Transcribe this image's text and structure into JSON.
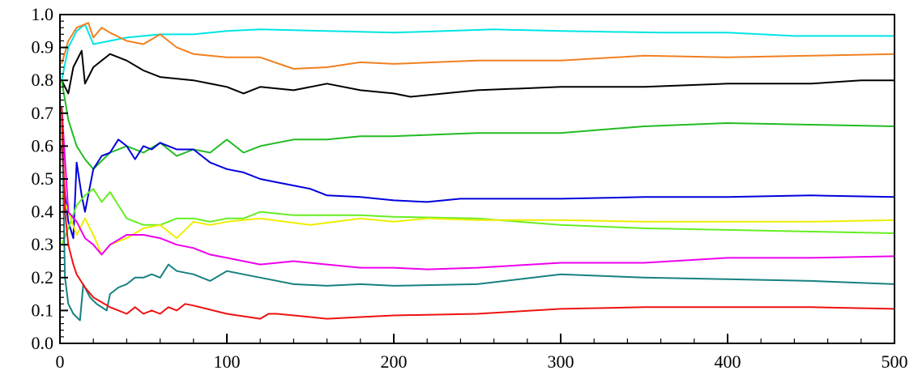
{
  "chart_data": {
    "type": "line",
    "title": "",
    "xlabel": "",
    "ylabel": "",
    "xlim": [
      0,
      500
    ],
    "ylim": [
      0.0,
      1.0
    ],
    "x_ticks": [
      "0",
      "100",
      "200",
      "300",
      "400",
      "500"
    ],
    "y_ticks": [
      "0.0",
      "0.1",
      "0.2",
      "0.3",
      "0.4",
      "0.5",
      "0.6",
      "0.7",
      "0.8",
      "0.9",
      "1.0"
    ],
    "grid": false,
    "legend": "none",
    "series": [
      {
        "color": "#00e5e5",
        "x": [
          1,
          5,
          10,
          15,
          20,
          40,
          60,
          80,
          100,
          120,
          160,
          200,
          260,
          300,
          360,
          400,
          440,
          500
        ],
        "y": [
          0.8,
          0.9,
          0.95,
          0.97,
          0.91,
          0.93,
          0.94,
          0.94,
          0.95,
          0.955,
          0.95,
          0.945,
          0.955,
          0.95,
          0.945,
          0.945,
          0.935,
          0.935
        ]
      },
      {
        "color": "#f08020",
        "x": [
          1,
          5,
          10,
          17,
          20,
          25,
          30,
          40,
          50,
          60,
          70,
          80,
          100,
          120,
          140,
          160,
          180,
          200,
          250,
          300,
          350,
          400,
          450,
          500
        ],
        "y": [
          0.85,
          0.92,
          0.96,
          0.975,
          0.93,
          0.96,
          0.945,
          0.92,
          0.91,
          0.94,
          0.9,
          0.88,
          0.87,
          0.87,
          0.835,
          0.84,
          0.855,
          0.85,
          0.86,
          0.86,
          0.875,
          0.87,
          0.875,
          0.88
        ]
      },
      {
        "color": "#000000",
        "x": [
          1,
          5,
          8,
          13,
          15,
          20,
          25,
          30,
          40,
          50,
          60,
          80,
          100,
          110,
          120,
          140,
          160,
          180,
          200,
          210,
          250,
          300,
          350,
          400,
          450,
          480,
          500
        ],
        "y": [
          0.8,
          0.76,
          0.84,
          0.89,
          0.79,
          0.84,
          0.86,
          0.88,
          0.86,
          0.83,
          0.81,
          0.8,
          0.78,
          0.76,
          0.78,
          0.77,
          0.79,
          0.77,
          0.76,
          0.75,
          0.77,
          0.78,
          0.78,
          0.79,
          0.79,
          0.8,
          0.8
        ]
      },
      {
        "color": "#22bb22",
        "x": [
          1,
          5,
          10,
          15,
          20,
          30,
          40,
          50,
          60,
          70,
          80,
          90,
          100,
          110,
          120,
          140,
          160,
          180,
          200,
          250,
          300,
          350,
          400,
          450,
          500
        ],
        "y": [
          0.8,
          0.68,
          0.6,
          0.56,
          0.53,
          0.58,
          0.6,
          0.58,
          0.61,
          0.57,
          0.59,
          0.58,
          0.62,
          0.58,
          0.6,
          0.62,
          0.62,
          0.63,
          0.63,
          0.64,
          0.64,
          0.66,
          0.67,
          0.665,
          0.66
        ]
      },
      {
        "color": "#0000dd",
        "x": [
          1,
          3,
          5,
          8,
          10,
          13,
          15,
          20,
          25,
          30,
          35,
          40,
          45,
          50,
          55,
          60,
          65,
          70,
          80,
          90,
          100,
          110,
          120,
          130,
          140,
          150,
          160,
          180,
          200,
          220,
          240,
          260,
          300,
          350,
          400,
          450,
          500
        ],
        "y": [
          0.6,
          0.45,
          0.37,
          0.32,
          0.55,
          0.45,
          0.4,
          0.53,
          0.57,
          0.58,
          0.62,
          0.6,
          0.56,
          0.6,
          0.59,
          0.61,
          0.6,
          0.59,
          0.59,
          0.55,
          0.53,
          0.52,
          0.5,
          0.49,
          0.48,
          0.47,
          0.45,
          0.445,
          0.435,
          0.43,
          0.44,
          0.44,
          0.44,
          0.445,
          0.445,
          0.45,
          0.445
        ]
      },
      {
        "color": "#66ee22",
        "x": [
          1,
          5,
          10,
          15,
          20,
          25,
          30,
          40,
          50,
          60,
          70,
          80,
          90,
          100,
          110,
          120,
          140,
          160,
          180,
          200,
          250,
          300,
          350,
          400,
          450,
          500
        ],
        "y": [
          0.3,
          0.35,
          0.42,
          0.45,
          0.47,
          0.43,
          0.46,
          0.38,
          0.36,
          0.36,
          0.38,
          0.38,
          0.37,
          0.38,
          0.38,
          0.4,
          0.39,
          0.39,
          0.39,
          0.385,
          0.38,
          0.36,
          0.35,
          0.345,
          0.34,
          0.335
        ]
      },
      {
        "color": "#eeee00",
        "x": [
          1,
          5,
          10,
          15,
          20,
          25,
          30,
          40,
          50,
          60,
          70,
          80,
          90,
          100,
          120,
          150,
          180,
          200,
          220,
          250,
          300,
          350,
          400,
          450,
          500
        ],
        "y": [
          0.45,
          0.4,
          0.33,
          0.38,
          0.33,
          0.27,
          0.3,
          0.32,
          0.35,
          0.36,
          0.32,
          0.37,
          0.36,
          0.37,
          0.38,
          0.36,
          0.38,
          0.37,
          0.38,
          0.375,
          0.375,
          0.37,
          0.37,
          0.37,
          0.375
        ]
      },
      {
        "color": "#ee00ee",
        "x": [
          1,
          5,
          10,
          15,
          20,
          25,
          30,
          40,
          50,
          60,
          70,
          80,
          90,
          100,
          110,
          120,
          140,
          160,
          180,
          200,
          220,
          250,
          300,
          350,
          400,
          450,
          500
        ],
        "y": [
          0.72,
          0.4,
          0.37,
          0.32,
          0.3,
          0.27,
          0.3,
          0.33,
          0.33,
          0.32,
          0.3,
          0.29,
          0.27,
          0.26,
          0.25,
          0.24,
          0.25,
          0.24,
          0.23,
          0.23,
          0.225,
          0.23,
          0.245,
          0.245,
          0.26,
          0.26,
          0.265
        ]
      },
      {
        "color": "#178080",
        "x": [
          1,
          3,
          5,
          8,
          12,
          14,
          18,
          22,
          28,
          30,
          35,
          40,
          45,
          50,
          55,
          60,
          65,
          70,
          80,
          90,
          100,
          120,
          140,
          160,
          180,
          200,
          250,
          300,
          350,
          400,
          450,
          500
        ],
        "y": [
          0.72,
          0.2,
          0.12,
          0.09,
          0.07,
          0.18,
          0.14,
          0.12,
          0.1,
          0.15,
          0.17,
          0.18,
          0.2,
          0.2,
          0.21,
          0.2,
          0.24,
          0.22,
          0.21,
          0.19,
          0.22,
          0.2,
          0.18,
          0.175,
          0.18,
          0.175,
          0.18,
          0.21,
          0.2,
          0.195,
          0.19,
          0.18
        ]
      },
      {
        "color": "#ee1111",
        "x": [
          1,
          3,
          5,
          8,
          10,
          15,
          20,
          30,
          40,
          45,
          50,
          55,
          60,
          65,
          70,
          75,
          80,
          100,
          120,
          125,
          130,
          150,
          160,
          180,
          200,
          250,
          300,
          350,
          400,
          450,
          500
        ],
        "y": [
          0.72,
          0.4,
          0.3,
          0.24,
          0.21,
          0.17,
          0.14,
          0.11,
          0.09,
          0.11,
          0.09,
          0.1,
          0.09,
          0.11,
          0.1,
          0.12,
          0.115,
          0.09,
          0.075,
          0.09,
          0.09,
          0.08,
          0.075,
          0.08,
          0.085,
          0.09,
          0.105,
          0.11,
          0.11,
          0.11,
          0.105
        ]
      }
    ]
  }
}
